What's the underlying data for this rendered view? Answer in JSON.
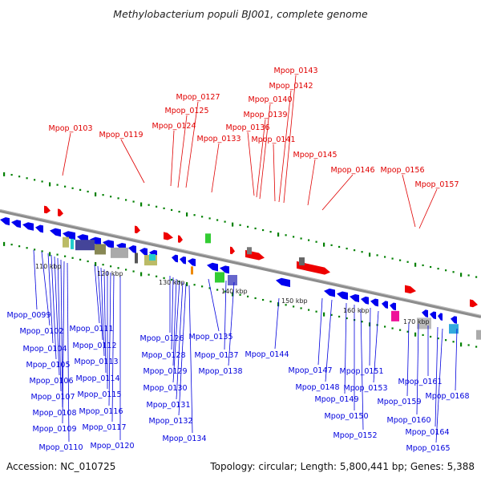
{
  "title": "Methylobacterium populi BJ001, complete genome",
  "accession": "Accession: NC_010725",
  "summary": "Topology: circular; Length: 5,800,441 bp; Genes: 5,388",
  "colors": {
    "backbone": "#8c8c8c",
    "forward_label": "#e00000",
    "reverse_label": "#0000dd",
    "forward_gene": "#ee0000",
    "reverse_gene": "#0000ee",
    "tick": "#008000"
  },
  "kbp_ticks": [
    "110 kbp",
    "120 kbp",
    "130 kbp",
    "140 kbp",
    "150 kbp",
    "160 kbp",
    "170 kbp"
  ],
  "forward_genes": [
    "Mpop_0103",
    "Mpop_0119",
    "Mpop_0124",
    "Mpop_0125",
    "Mpop_0127",
    "Mpop_0133",
    "Mpop_0136",
    "Mpop_0139",
    "Mpop_0140",
    "Mpop_0141",
    "Mpop_0142",
    "Mpop_0143",
    "Mpop_0145",
    "Mpop_0146",
    "Mpop_0156",
    "Mpop_0157"
  ],
  "reverse_genes": [
    "Mpop_0099",
    "Mpop_0102",
    "Mpop_0104",
    "Mpop_0105",
    "Mpop_0106",
    "Mpop_0107",
    "Mpop_0108",
    "Mpop_0109",
    "Mpop_0110",
    "Mpop_0111",
    "Mpop_0112",
    "Mpop_0113",
    "Mpop_0114",
    "Mpop_0115",
    "Mpop_0116",
    "Mpop_0117",
    "Mpop_0120",
    "Mpop_0126",
    "Mpop_0128",
    "Mpop_0129",
    "Mpop_0130",
    "Mpop_0131",
    "Mpop_0132",
    "Mpop_0134",
    "Mpop_0135",
    "Mpop_0137",
    "Mpop_0138",
    "Mpop_0144",
    "Mpop_0147",
    "Mpop_0148",
    "Mpop_0149",
    "Mpop_0150",
    "Mpop_0151",
    "Mpop_0152",
    "Mpop_0153",
    "Mpop_0159",
    "Mpop_0160",
    "Mpop_0161",
    "Mpop_0164",
    "Mpop_0165",
    "Mpop_0168"
  ]
}
